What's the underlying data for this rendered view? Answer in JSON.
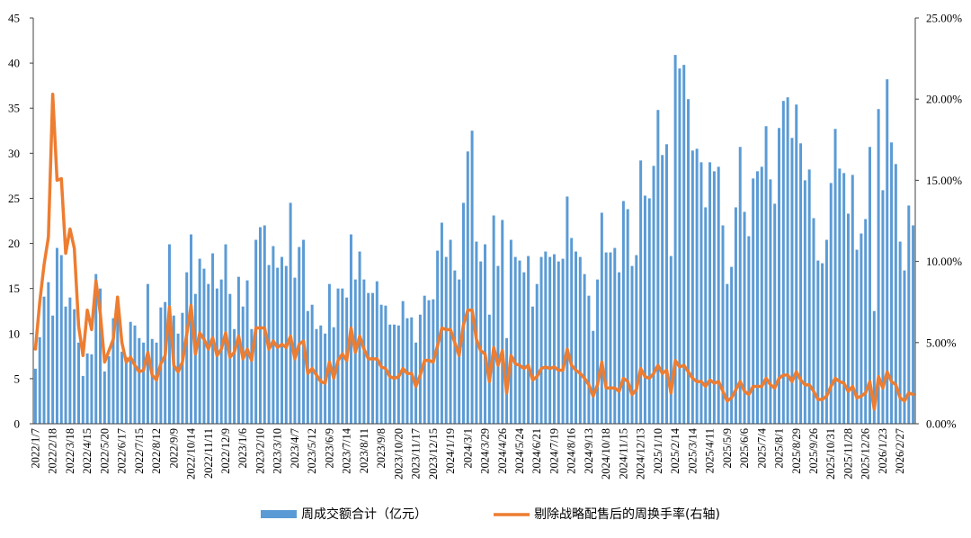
{
  "chart_data": {
    "type": "bar",
    "legend": "bottom",
    "grid": false,
    "y_left_range": [
      0,
      45
    ],
    "y_left_ticks": [
      "0",
      "5",
      "10",
      "15",
      "20",
      "25",
      "30",
      "35",
      "40",
      "45"
    ],
    "y_right_range": [
      0,
      25
    ],
    "y_right_ticks": [
      "0.00%",
      "5.00%",
      "10.00%",
      "15.00%",
      "20.00%",
      "25.00%"
    ],
    "x_tick_labels": [
      "2022/1/7",
      "2022/2/18",
      "2022/3/18",
      "2022/4/15",
      "2022/5/20",
      "2022/6/17",
      "2022/7/15",
      "2022/8/12",
      "2022/9/9",
      "2022/10/14",
      "2022/11/11",
      "2022/12/9",
      "2023/1/6",
      "2023/2/10",
      "2023/3/10",
      "2023/4/7",
      "2023/5/12",
      "2023/6/9",
      "2023/7/14",
      "2023/8/11",
      "2023/9/8",
      "2023/10/20",
      "2023/11/17",
      "2023/12/15",
      "2024/1/19",
      "2024/3/1",
      "2024/3/29",
      "2024/4/26",
      "2024/5/24",
      "2024/6/21",
      "2024/7/19",
      "2024/8/16",
      "2024/9/13",
      "2024/10/18",
      "2024/11/15",
      "2024/12/13",
      "2025/1/10",
      "2025/2/14",
      "2025/3/14",
      "2025/4/11",
      "2025/5/9",
      "2025/6/6",
      "2025/7/4",
      "2025/8/1",
      "2025/8/29",
      "2025/9/26",
      "2025/10/31",
      "2025/11/28",
      "2025/12/26",
      "2026/1/23",
      "2026/2/27"
    ],
    "colors": {
      "bar": "#5B9BD5",
      "line": "#ED7D31"
    },
    "series": [
      {
        "name": "周成交额合计（亿元）",
        "type": "bar",
        "axis": "left",
        "values": [
          6.1,
          9.6,
          14.1,
          15.7,
          12.0,
          19.5,
          18.7,
          13.0,
          14.0,
          12.7,
          9.0,
          5.3,
          7.8,
          7.7,
          16.6,
          15.0,
          5.8,
          7.5,
          11.7,
          12.5,
          8.0,
          7.4,
          11.3,
          10.9,
          9.5,
          9.0,
          15.5,
          9.4,
          9.0,
          12.9,
          13.5,
          19.9,
          12.0,
          10.0,
          12.3,
          16.8,
          21.0,
          14.4,
          18.3,
          17.2,
          15.5,
          18.9,
          15.0,
          16.0,
          19.9,
          14.4,
          10.5,
          16.3,
          13.0,
          15.9,
          10.5,
          20.4,
          21.8,
          22.0,
          17.6,
          19.7,
          17.3,
          18.5,
          17.5,
          24.5,
          16.2,
          19.6,
          20.4,
          12.5,
          13.2,
          10.5,
          10.9,
          10.0,
          15.5,
          10.7,
          15.0,
          15.0,
          14.0,
          21.0,
          16.0,
          19.1,
          16.0,
          14.5,
          14.5,
          15.8,
          13.2,
          13.1,
          11.0,
          11.0,
          10.9,
          13.6,
          11.7,
          11.8,
          9.0,
          12.1,
          14.2,
          13.7,
          13.8,
          19.2,
          22.3,
          18.5,
          20.4,
          17.0,
          16.0,
          24.5,
          30.2,
          32.5,
          20.2,
          18.0,
          19.9,
          12.1,
          23.1,
          17.5,
          22.6,
          9.5,
          20.4,
          18.5,
          18.1,
          16.8,
          18.6,
          13.0,
          15.5,
          18.5,
          19.1,
          18.5,
          18.8,
          18.0,
          18.3,
          25.2,
          20.6,
          19.1,
          18.5,
          16.6,
          14.2,
          10.3,
          16.0,
          23.4,
          19.0,
          19.0,
          19.5,
          16.8,
          24.7,
          23.8,
          17.5,
          18.7,
          29.2,
          25.3,
          25.0,
          28.6,
          34.8,
          29.8,
          31.0,
          18.6,
          40.9,
          39.4,
          39.8,
          36.0,
          30.3,
          30.5,
          29.0,
          24.0,
          29.0,
          28.0,
          28.5,
          22.0,
          15.5,
          17.4,
          24.0,
          30.7,
          23.5,
          20.8,
          27.2,
          28.0,
          28.5,
          33.0,
          27.1,
          24.4,
          32.8,
          35.8,
          36.2,
          31.7,
          35.4,
          31.1,
          27.0,
          28.2,
          22.8,
          18.1,
          17.8,
          20.4,
          26.7,
          32.7,
          28.3,
          27.8,
          23.3,
          27.6,
          19.3,
          21.1,
          22.7,
          30.7,
          12.5,
          34.9,
          25.9,
          38.2,
          31.2,
          28.8,
          20.2,
          17.0,
          24.2,
          22.0
        ]
      },
      {
        "name": "剔除战略配售后的周换手率(右轴)",
        "type": "line",
        "axis": "right",
        "values": [
          4.6,
          7.5,
          9.8,
          11.5,
          20.3,
          15.0,
          15.1,
          10.5,
          12.0,
          10.8,
          6.0,
          4.2,
          7.0,
          5.8,
          8.8,
          6.8,
          3.8,
          4.5,
          5.2,
          7.8,
          5.0,
          3.8,
          4.1,
          3.6,
          3.2,
          3.3,
          4.4,
          3.0,
          2.7,
          3.7,
          4.2,
          7.2,
          3.6,
          3.2,
          3.8,
          5.5,
          7.3,
          4.3,
          5.6,
          5.2,
          4.6,
          5.3,
          4.2,
          4.6,
          5.6,
          4.1,
          4.4,
          5.4,
          4.0,
          4.6,
          3.9,
          5.9,
          5.9,
          5.9,
          4.6,
          5.1,
          4.7,
          4.9,
          4.7,
          5.4,
          4.0,
          4.9,
          5.1,
          3.1,
          3.4,
          3.0,
          2.6,
          2.5,
          3.8,
          2.8,
          3.9,
          4.3,
          3.9,
          5.9,
          4.4,
          5.4,
          4.6,
          4.0,
          4.0,
          4.0,
          3.5,
          3.4,
          2.9,
          2.8,
          2.9,
          3.4,
          3.1,
          3.1,
          2.3,
          3.0,
          3.9,
          3.9,
          3.8,
          4.8,
          5.9,
          5.8,
          5.8,
          5.0,
          4.2,
          6.1,
          7.0,
          7.0,
          5.2,
          4.5,
          4.3,
          2.6,
          4.7,
          3.6,
          4.5,
          1.9,
          4.2,
          3.7,
          3.6,
          3.4,
          3.6,
          2.7,
          2.9,
          3.4,
          3.5,
          3.4,
          3.5,
          3.3,
          3.3,
          4.6,
          3.6,
          3.3,
          3.1,
          2.8,
          2.4,
          1.7,
          2.4,
          3.8,
          2.2,
          2.2,
          2.2,
          2.0,
          2.8,
          2.6,
          1.8,
          2.1,
          3.4,
          2.9,
          2.8,
          3.1,
          3.6,
          3.1,
          3.3,
          1.9,
          3.9,
          3.5,
          3.6,
          3.2,
          2.8,
          2.6,
          2.6,
          2.3,
          2.7,
          2.5,
          2.6,
          2.0,
          1.4,
          1.6,
          2.1,
          2.6,
          2.0,
          1.8,
          2.3,
          2.3,
          2.3,
          2.8,
          2.4,
          2.2,
          2.8,
          3.0,
          3.0,
          2.6,
          3.2,
          2.7,
          2.4,
          2.4,
          2.0,
          1.5,
          1.5,
          1.7,
          2.3,
          2.8,
          2.6,
          2.5,
          2.0,
          2.3,
          1.6,
          1.7,
          1.9,
          2.6,
          0.9,
          2.9,
          2.2,
          3.2,
          2.6,
          2.4,
          1.6,
          1.4,
          1.9,
          1.8
        ]
      }
    ]
  }
}
